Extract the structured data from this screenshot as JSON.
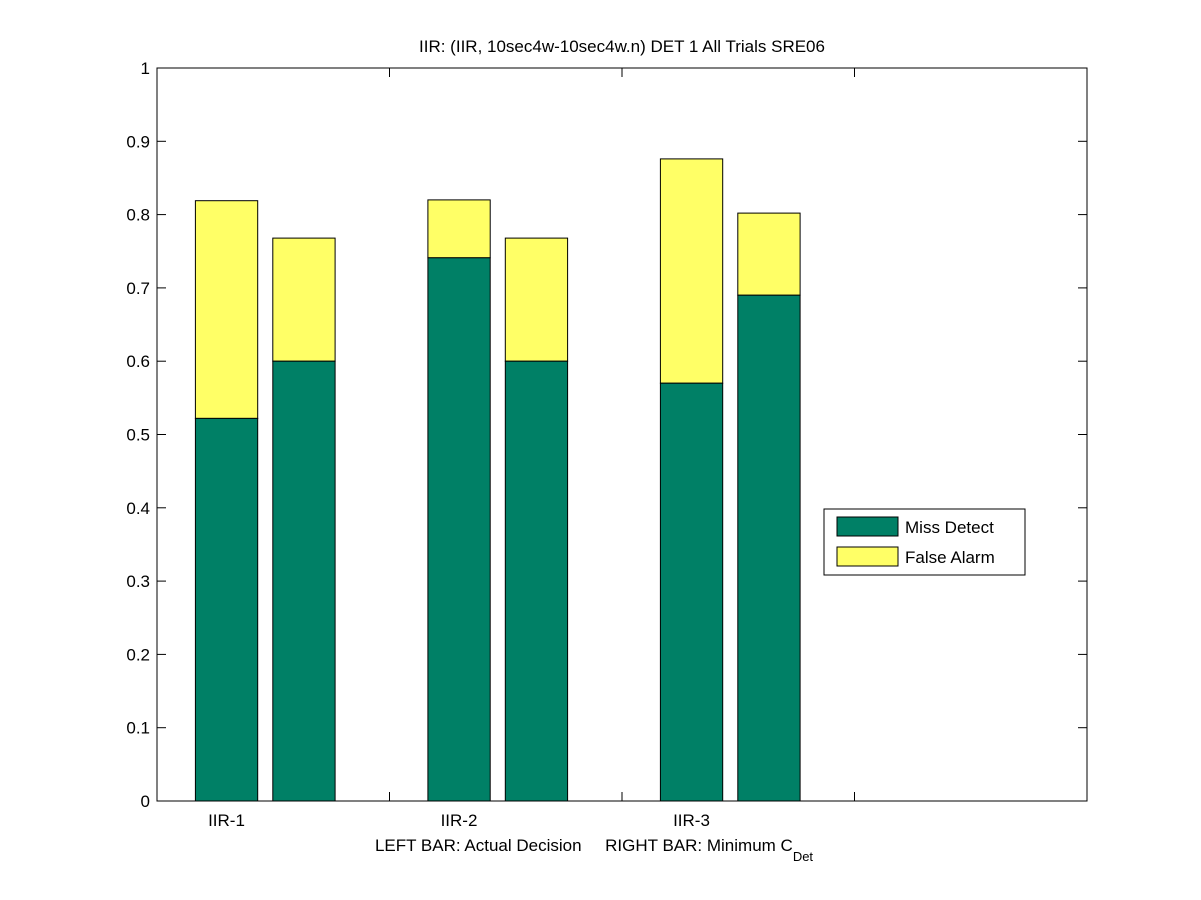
{
  "chart_data": {
    "type": "bar",
    "stacked": true,
    "title": "IIR: (IIR, 10sec4w-10sec4w.n) DET 1 All Trials SRE06",
    "xlabel_prefix": "LEFT BAR: Actual Decision     RIGHT BAR: Minimum C",
    "xlabel_subscript": "Det",
    "ylim": [
      0,
      1
    ],
    "yticks": [
      "0",
      "0.1",
      "0.2",
      "0.3",
      "0.4",
      "0.5",
      "0.6",
      "0.7",
      "0.8",
      "0.9",
      "1"
    ],
    "categories": [
      "IIR-1",
      "IIR-2",
      "IIR-3"
    ],
    "bars": [
      {
        "group": "IIR-1",
        "side": "left",
        "miss_detect": 0.522,
        "false_alarm": 0.297
      },
      {
        "group": "IIR-1",
        "side": "right",
        "miss_detect": 0.6,
        "false_alarm": 0.168
      },
      {
        "group": "IIR-2",
        "side": "left",
        "miss_detect": 0.741,
        "false_alarm": 0.079
      },
      {
        "group": "IIR-2",
        "side": "right",
        "miss_detect": 0.6,
        "false_alarm": 0.168
      },
      {
        "group": "IIR-3",
        "side": "left",
        "miss_detect": 0.57,
        "false_alarm": 0.306
      },
      {
        "group": "IIR-3",
        "side": "right",
        "miss_detect": 0.69,
        "false_alarm": 0.112
      }
    ],
    "series": [
      {
        "name": "Miss Detect",
        "color": "#008066"
      },
      {
        "name": "False Alarm",
        "color": "#ffff66"
      }
    ],
    "legend_position": "right"
  }
}
